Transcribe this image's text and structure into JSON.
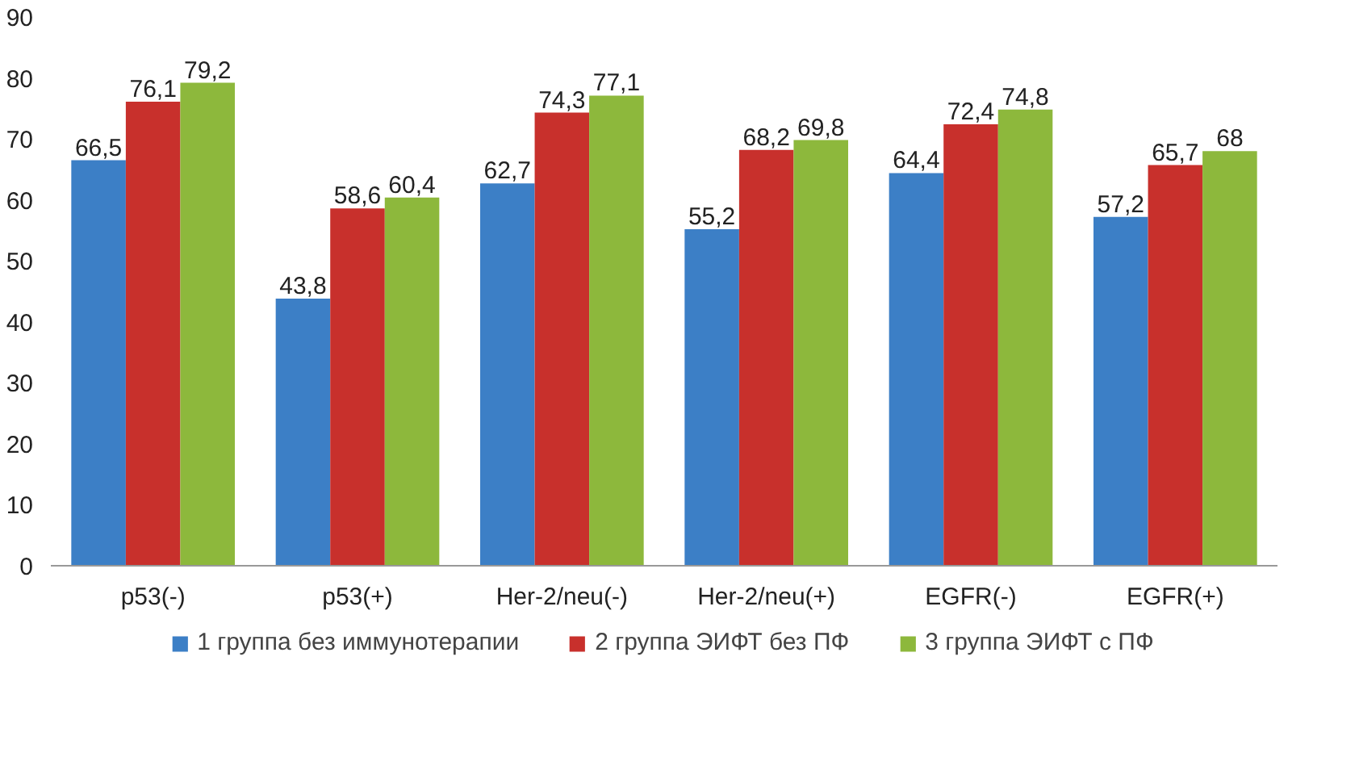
{
  "chart_data": {
    "type": "bar",
    "categories": [
      "p53(-)",
      "p53(+)",
      "Her-2/neu(-)",
      "Her-2/neu(+)",
      "EGFR(-)",
      "EGFR(+)"
    ],
    "series": [
      {
        "name": "1 группа без иммунотерапии",
        "color": "#3c7fc6",
        "values": [
          66.5,
          43.8,
          62.7,
          55.2,
          64.4,
          57.2
        ],
        "value_labels": [
          "66,5",
          "43,8",
          "62,7",
          "55,2",
          "64,4",
          "57,2"
        ]
      },
      {
        "name": "2 группа ЭИФТ без ПФ",
        "color": "#c8302c",
        "values": [
          76.1,
          58.6,
          74.3,
          68.2,
          72.4,
          65.7
        ],
        "value_labels": [
          "76,1",
          "58,6",
          "74,3",
          "68,2",
          "72,4",
          "65,7"
        ]
      },
      {
        "name": "3 группа ЭИФТ с ПФ",
        "color": "#8db83c",
        "values": [
          79.2,
          60.4,
          77.1,
          69.8,
          74.8,
          68
        ],
        "value_labels": [
          "79,2",
          "60,4",
          "77,1",
          "69,8",
          "74,8",
          "68"
        ]
      }
    ],
    "ylim": [
      0,
      90
    ],
    "yticks": [
      0,
      10,
      20,
      30,
      40,
      50,
      60,
      70,
      80,
      90
    ],
    "grid": false,
    "legend": "bottom"
  }
}
